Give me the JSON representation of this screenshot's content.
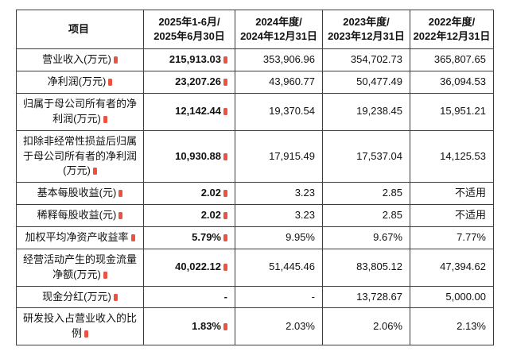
{
  "page": {
    "background": "#ffffff"
  },
  "accent": {
    "mark_color": "#e8543f"
  },
  "table": {
    "header": [
      {
        "lines": [
          "项目"
        ],
        "mark": true
      },
      {
        "lines": [
          "2025年1-6月/",
          "2025年6月30日"
        ],
        "mark": false
      },
      {
        "lines": [
          "2024年度/",
          "2024年12月31日"
        ],
        "mark": false
      },
      {
        "lines": [
          "2023年度/",
          "2023年12月31日"
        ],
        "mark": false
      },
      {
        "lines": [
          "2022年度/",
          "2022年12月31日"
        ],
        "mark": false
      }
    ],
    "rows": [
      {
        "label": "营业收入(万元)",
        "mark": true,
        "values": [
          "215,913.03",
          "353,906.96",
          "354,702.73",
          "365,807.65"
        ],
        "value_marks": [
          true,
          false,
          false,
          false
        ]
      },
      {
        "label": "净利润(万元)",
        "mark": true,
        "values": [
          "23,207.26",
          "43,960.77",
          "50,477.49",
          "36,094.53"
        ],
        "value_marks": [
          true,
          false,
          false,
          false
        ]
      },
      {
        "label": "归属于母公司所有者的净利润(万元)",
        "mark": true,
        "values": [
          "12,142.44",
          "19,370.54",
          "19,238.45",
          "15,951.21"
        ],
        "value_marks": [
          true,
          false,
          false,
          false
        ]
      },
      {
        "label": "扣除非经常性损益后归属于母公司所有者的净利润(万元)",
        "mark": true,
        "values": [
          "10,930.88",
          "17,915.49",
          "17,537.04",
          "14,125.53"
        ],
        "value_marks": [
          true,
          false,
          false,
          false
        ]
      },
      {
        "label": "基本每股收益(元)",
        "mark": true,
        "values": [
          "2.02",
          "3.23",
          "2.85",
          "不适用"
        ],
        "value_marks": [
          true,
          false,
          false,
          false
        ]
      },
      {
        "label": "稀释每股收益(元)",
        "mark": true,
        "values": [
          "2.02",
          "3.23",
          "2.85",
          "不适用"
        ],
        "value_marks": [
          true,
          false,
          false,
          false
        ]
      },
      {
        "label": "加权平均净资产收益率",
        "mark": true,
        "values": [
          "5.79%",
          "9.95%",
          "9.67%",
          "7.77%"
        ],
        "value_marks": [
          true,
          false,
          false,
          false
        ]
      },
      {
        "label": "经营活动产生的现金流量净额(万元)",
        "mark": true,
        "values": [
          "40,022.12",
          "51,445.46",
          "83,805.12",
          "47,394.62"
        ],
        "value_marks": [
          true,
          false,
          false,
          false
        ]
      },
      {
        "label": "现金分红(万元)",
        "mark": true,
        "values": [
          "-",
          "-",
          "13,728.67",
          "5,000.00"
        ],
        "value_marks": [
          false,
          false,
          false,
          false
        ]
      },
      {
        "label": "研发投入占营业收入的比例",
        "mark": true,
        "values": [
          "1.83%",
          "2.03%",
          "2.06%",
          "2.13%"
        ],
        "value_marks": [
          true,
          false,
          false,
          false
        ]
      }
    ]
  },
  "chart_data": {
    "type": "table",
    "columns": [
      "项目",
      "2025年1-6月/2025年6月30日",
      "2024年度/2024年12月31日",
      "2023年度/2023年12月31日",
      "2022年度/2022年12月31日"
    ],
    "rows": [
      [
        "营业收入(万元)",
        "215,913.03",
        "353,906.96",
        "354,702.73",
        "365,807.65"
      ],
      [
        "净利润(万元)",
        "23,207.26",
        "43,960.77",
        "50,477.49",
        "36,094.53"
      ],
      [
        "归属于母公司所有者的净利润(万元)",
        "12,142.44",
        "19,370.54",
        "19,238.45",
        "15,951.21"
      ],
      [
        "扣除非经常性损益后归属于母公司所有者的净利润(万元)",
        "10,930.88",
        "17,915.49",
        "17,537.04",
        "14,125.53"
      ],
      [
        "基本每股收益(元)",
        "2.02",
        "3.23",
        "2.85",
        "不适用"
      ],
      [
        "稀释每股收益(元)",
        "2.02",
        "3.23",
        "2.85",
        "不适用"
      ],
      [
        "加权平均净资产收益率",
        "5.79%",
        "9.95%",
        "9.67%",
        "7.77%"
      ],
      [
        "经营活动产生的现金流量净额(万元)",
        "40,022.12",
        "51,445.46",
        "83,805.12",
        "47,394.62"
      ],
      [
        "现金分红(万元)",
        "-",
        "-",
        "13,728.67",
        "5,000.00"
      ],
      [
        "研发投入占营业收入的比例",
        "1.83%",
        "2.03%",
        "2.06%",
        "2.13%"
      ]
    ]
  }
}
